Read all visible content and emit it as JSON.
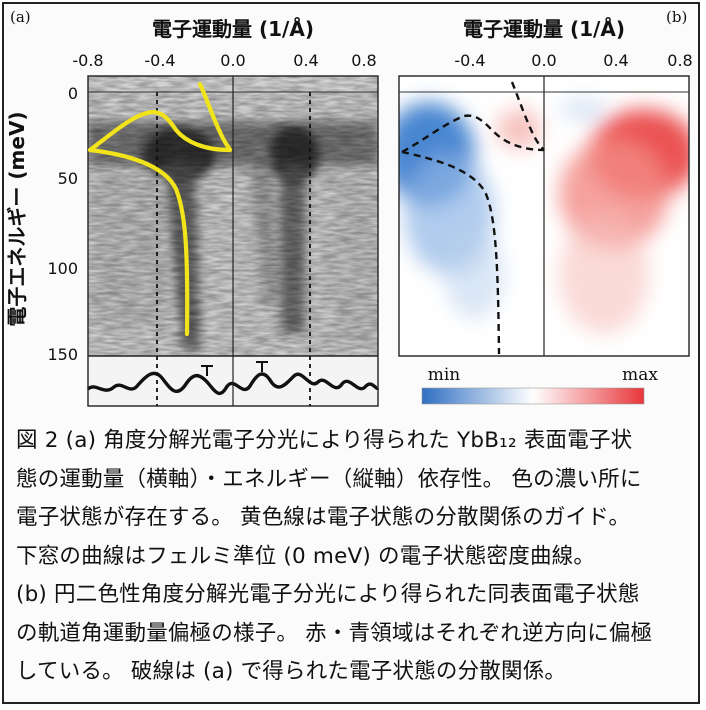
{
  "figure": {
    "panel_a_tag": "(a)",
    "panel_b_tag": "(b)",
    "x_axis_title_a": "電子運動量 (1/Å)",
    "x_axis_title_b": "電子運動量 (1/Å)",
    "y_axis_title": "電子エネルギー (meV)",
    "x_ticks_a": [
      "-0.8",
      "-0.4",
      "0.0",
      "0.4",
      "0.8"
    ],
    "x_ticks_b": [
      "-0.4",
      "0.0",
      "0.4",
      "0.8"
    ],
    "y_ticks": [
      "0",
      "50",
      "100",
      "150"
    ],
    "colorbar": {
      "min_label": "min",
      "max_label": "max",
      "min_color": "#2f6fc2",
      "max_color": "#e8363a"
    },
    "guide_color": "#f2e41a"
  },
  "chart_data": [
    {
      "type": "heatmap",
      "panel": "(a)",
      "xlabel": "電子運動量 (1/Å)",
      "ylabel": "電子エネルギー (meV)",
      "xlim": [
        -0.8,
        0.8
      ],
      "ylim": [
        150,
        0
      ],
      "dashed_lines_x": [
        -0.47,
        0.44
      ],
      "bands": [
        {
          "x": [
            -0.82,
            -0.6,
            -0.45,
            -0.35,
            -0.3,
            -0.22,
            -0.1,
            0.0
          ],
          "y": [
            32,
            22,
            16,
            13,
            22,
            30,
            33,
            32
          ]
        },
        {
          "x": [
            -0.82,
            -0.6,
            -0.45,
            -0.36,
            -0.3,
            -0.28,
            -0.27
          ],
          "y": [
            32,
            38,
            50,
            70,
            95,
            120,
            143
          ]
        },
        {
          "x": [
            -0.2,
            -0.13,
            -0.08,
            -0.02,
            0.02
          ],
          "y": [
            -5,
            8,
            20,
            30,
            33
          ]
        }
      ],
      "lower_panel": "フェルミ準位 (0 meV) の電子状態密度曲線"
    },
    {
      "type": "heatmap",
      "panel": "(b)",
      "xlabel": "電子運動量 (1/Å)",
      "xlim": [
        -0.8,
        0.8
      ],
      "ylim": [
        150,
        0
      ],
      "colorbar": [
        "min",
        "max"
      ],
      "dashed_curves": [
        {
          "x": [
            -0.8,
            -0.6,
            -0.45,
            -0.38,
            -0.28,
            -0.15,
            -0.05,
            0.0
          ],
          "y": [
            33,
            25,
            18,
            12,
            17,
            30,
            32,
            32
          ]
        },
        {
          "x": [
            -0.8,
            -0.55,
            -0.43,
            -0.36,
            -0.3,
            -0.28
          ],
          "y": [
            33,
            42,
            55,
            80,
            110,
            148
          ]
        },
        {
          "x": [
            -0.2,
            -0.12,
            -0.06,
            -0.02
          ],
          "y": [
            -5,
            10,
            22,
            30
          ]
        }
      ]
    }
  ],
  "caption": {
    "lines": [
      "図 2 (a) 角度分解光電子分光により得られた YbB₁₂ 表面電子状",
      "態の運動量（横軸）・エネルギー（縦軸）依存性。 色の濃い所に",
      "電子状態が存在する。 黄色線は電子状態の分散関係のガイド。",
      "下窓の曲線はフェルミ準位 (0 meV) の電子状態密度曲線。",
      "(b) 円二色性角度分解光電子分光により得られた同表面電子状態",
      "の軌道角運動量偏極の様子。 赤・青領域はそれぞれ逆方向に偏極",
      "している。 破線は (a) で得られた電子状態の分散関係。"
    ]
  }
}
